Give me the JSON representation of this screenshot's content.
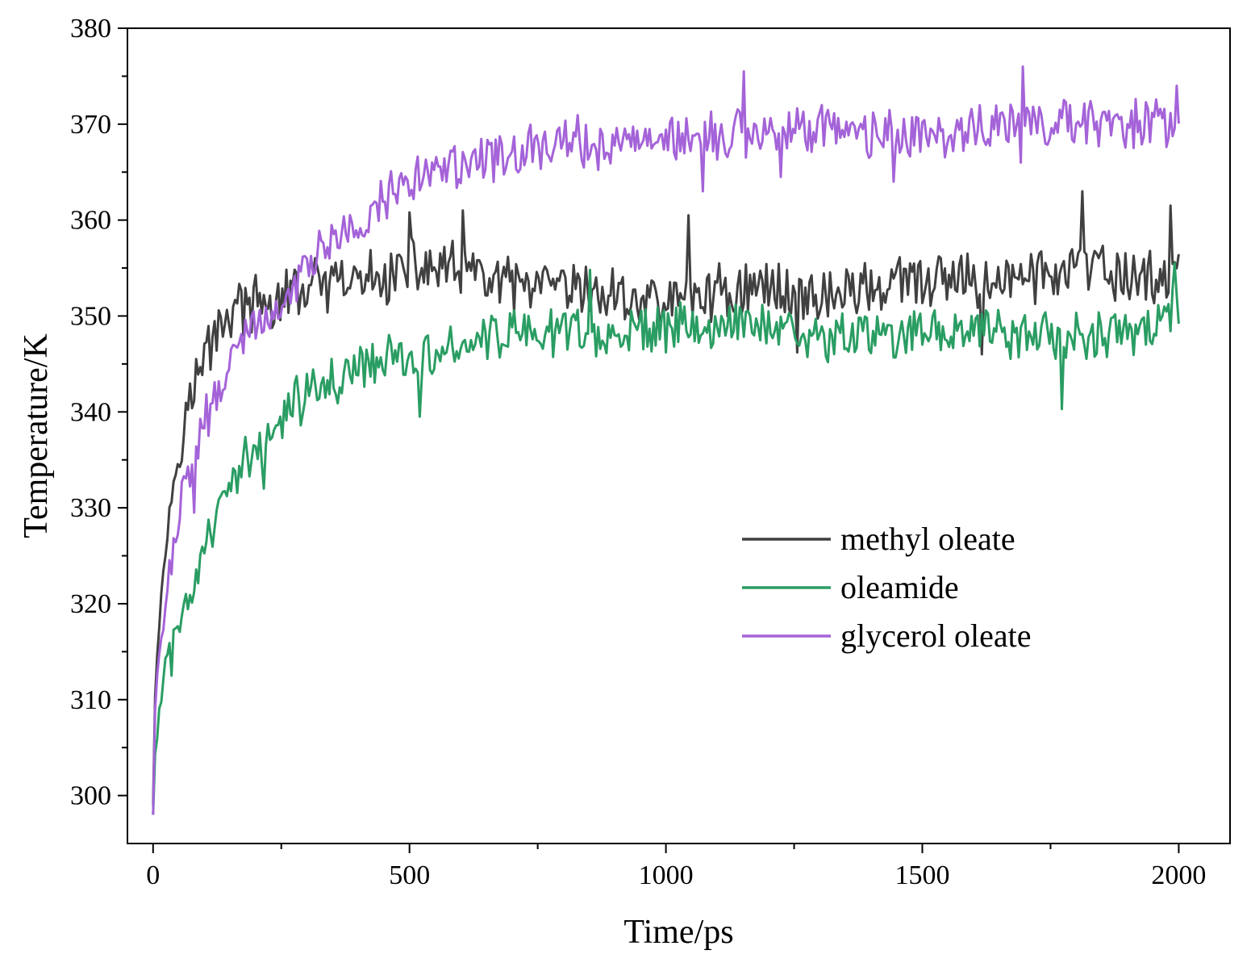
{
  "chart_data": {
    "type": "line",
    "title": "",
    "xlabel": "Time/ps",
    "ylabel": "Temperature/K",
    "xlim": [
      -50,
      2100
    ],
    "ylim": [
      295,
      380
    ],
    "xticks": [
      0,
      500,
      1000,
      1500,
      2000
    ],
    "yticks": [
      300,
      310,
      320,
      330,
      340,
      350,
      360,
      370,
      380
    ],
    "grid": false,
    "legend_position": "center-right",
    "series": [
      {
        "name": "methyl oleate",
        "color": "#404040",
        "anchors": [
          [
            0,
            299
          ],
          [
            5,
            314
          ],
          [
            15,
            320
          ],
          [
            25,
            326
          ],
          [
            40,
            333
          ],
          [
            55,
            338
          ],
          [
            70,
            341
          ],
          [
            90,
            344
          ],
          [
            110,
            347
          ],
          [
            140,
            350
          ],
          [
            170,
            351
          ],
          [
            200,
            351
          ],
          [
            230,
            351
          ],
          [
            260,
            352
          ],
          [
            300,
            353
          ],
          [
            350,
            353
          ],
          [
            400,
            353.5
          ],
          [
            450,
            354
          ],
          [
            500,
            355
          ],
          [
            550,
            355
          ],
          [
            600,
            354.5
          ],
          [
            700,
            353
          ],
          [
            800,
            352.5
          ],
          [
            900,
            352
          ],
          [
            1000,
            351.5
          ],
          [
            1100,
            352.5
          ],
          [
            1200,
            353
          ],
          [
            1300,
            352
          ],
          [
            1400,
            353
          ],
          [
            1500,
            353.5
          ],
          [
            1600,
            353.5
          ],
          [
            1700,
            354
          ],
          [
            1800,
            355
          ],
          [
            1900,
            354
          ],
          [
            2000,
            354
          ]
        ],
        "noise": 2.6,
        "spikes": [
          [
            1045,
            360.5
          ],
          [
            1810,
            363
          ],
          [
            1985,
            361.5
          ],
          [
            605,
            361
          ],
          [
            500,
            360.8
          ],
          [
            1615,
            346
          ],
          [
            1255,
            346.2
          ]
        ]
      },
      {
        "name": "oleamide",
        "color": "#2a9d63",
        "anchors": [
          [
            0,
            298
          ],
          [
            5,
            305
          ],
          [
            15,
            310
          ],
          [
            25,
            314
          ],
          [
            40,
            317
          ],
          [
            60,
            320
          ],
          [
            90,
            323
          ],
          [
            120,
            328
          ],
          [
            150,
            332
          ],
          [
            180,
            335
          ],
          [
            210,
            336
          ],
          [
            240,
            338
          ],
          [
            260,
            340
          ],
          [
            300,
            342
          ],
          [
            350,
            343
          ],
          [
            400,
            344.5
          ],
          [
            450,
            345.5
          ],
          [
            500,
            346
          ],
          [
            550,
            346.5
          ],
          [
            600,
            347
          ],
          [
            700,
            348
          ],
          [
            800,
            348.5
          ],
          [
            900,
            348
          ],
          [
            1000,
            349
          ],
          [
            1100,
            349
          ],
          [
            1200,
            349
          ],
          [
            1300,
            348
          ],
          [
            1400,
            348
          ],
          [
            1500,
            348
          ],
          [
            1600,
            348.5
          ],
          [
            1700,
            348
          ],
          [
            1800,
            348
          ],
          [
            1900,
            348
          ],
          [
            2000,
            351
          ]
        ],
        "noise": 2.2,
        "spikes": [
          [
            1770,
            340.3
          ],
          [
            520,
            339.5
          ],
          [
            215,
            332
          ],
          [
            35,
            312.5
          ],
          [
            850,
            354.8
          ],
          [
            1990,
            355.5
          ]
        ]
      },
      {
        "name": "glycerol oleate",
        "color": "#a463d8",
        "anchors": [
          [
            0,
            298
          ],
          [
            5,
            312
          ],
          [
            15,
            316
          ],
          [
            25,
            320
          ],
          [
            40,
            326
          ],
          [
            55,
            331
          ],
          [
            70,
            334
          ],
          [
            90,
            337
          ],
          [
            110,
            340
          ],
          [
            140,
            344
          ],
          [
            170,
            347
          ],
          [
            200,
            349
          ],
          [
            230,
            350
          ],
          [
            260,
            352
          ],
          [
            300,
            355
          ],
          [
            350,
            357.5
          ],
          [
            400,
            360
          ],
          [
            450,
            362
          ],
          [
            500,
            364
          ],
          [
            550,
            365
          ],
          [
            600,
            366
          ],
          [
            700,
            367
          ],
          [
            800,
            368
          ],
          [
            900,
            368
          ],
          [
            1000,
            368.5
          ],
          [
            1100,
            369
          ],
          [
            1200,
            369
          ],
          [
            1300,
            369.5
          ],
          [
            1400,
            369
          ],
          [
            1500,
            369
          ],
          [
            1600,
            369.5
          ],
          [
            1700,
            370
          ],
          [
            1800,
            370
          ],
          [
            1900,
            370
          ],
          [
            2000,
            370
          ]
        ],
        "noise": 2.3,
        "spikes": [
          [
            1150,
            375.5
          ],
          [
            1695,
            376
          ],
          [
            1690,
            366
          ],
          [
            1445,
            364
          ],
          [
            1225,
            364.5
          ],
          [
            1070,
            363
          ],
          [
            80,
            329.5
          ],
          [
            1995,
            374
          ]
        ]
      }
    ]
  }
}
